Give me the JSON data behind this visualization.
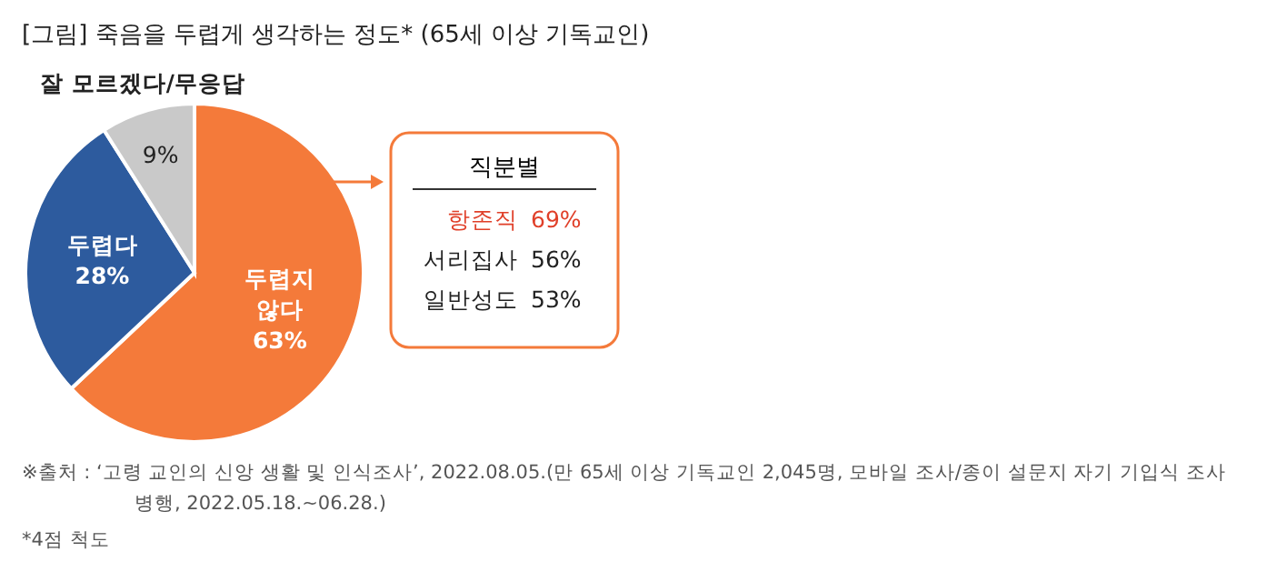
{
  "chart_data": {
    "type": "pie",
    "title": "[그림] 죽음을 두렵게 생각하는 정도* (65세 이상 기독교인)",
    "categories": [
      "두렵지 않다",
      "두렵다",
      "잘 모르겠다/무응답"
    ],
    "values": [
      63,
      28,
      9
    ],
    "colors": [
      "#f47a3a",
      "#2d5b9e",
      "#c9c9c9"
    ],
    "value_labels": [
      "63%",
      "28%",
      "9%"
    ],
    "annotations": [
      "직분별",
      "항존직 69%",
      "서리집사 56%",
      "일반성도 53%",
      "※출처 : ‘고령 교인의 신앙 생활 및 인식조사’, 2022.08.05.(만 65세 이상 기독교인 2,045명, 모바일 조사/종이 설문지 자기 기입식 조사 병행, 2022.05.18.~06.28.)",
      "*4점 척도"
    ]
  }
}
